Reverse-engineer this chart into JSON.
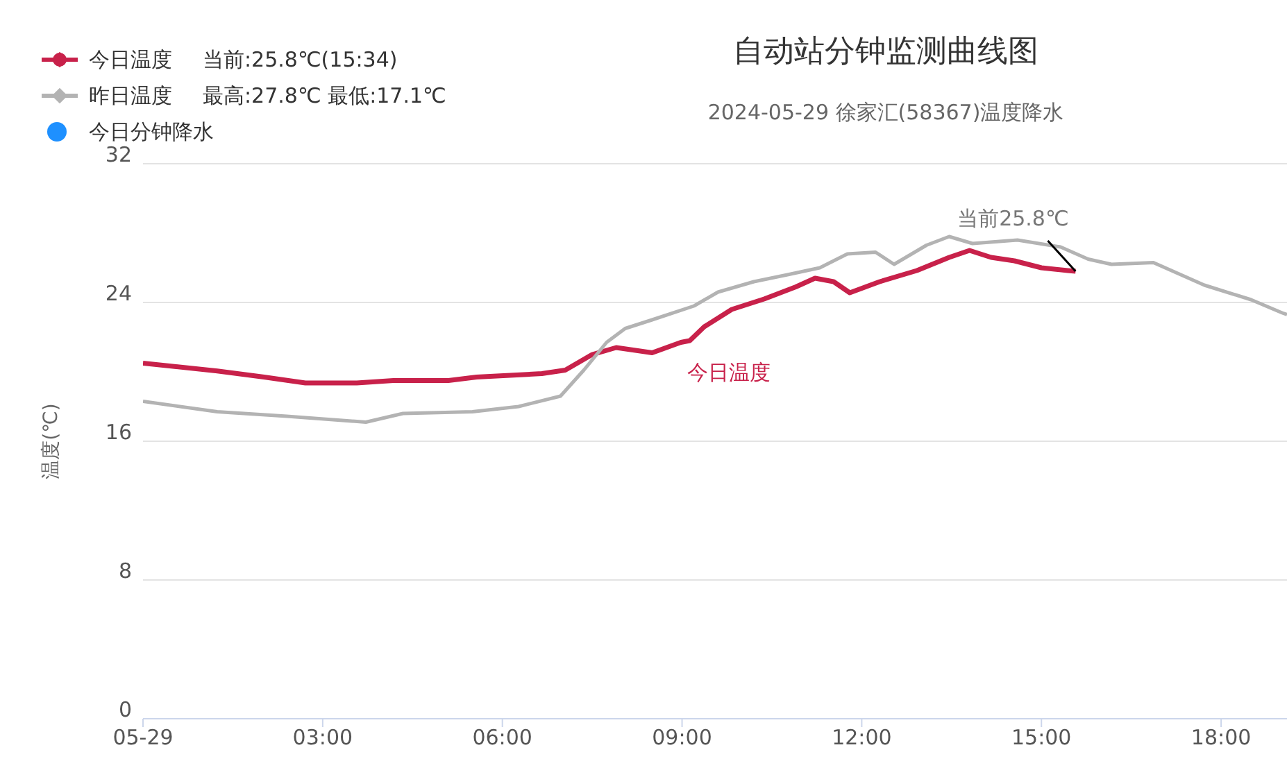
{
  "chart_data": {
    "type": "line",
    "title": "自动站分钟监测曲线图",
    "subtitle": "2024-05-29 徐家汇(58367)温度降水",
    "ylabel": "温度(℃)",
    "xlim": [
      0,
      19.1
    ],
    "xticks": [
      {
        "value": 0,
        "label": "05-29"
      },
      {
        "value": 3,
        "label": "03:00"
      },
      {
        "value": 6,
        "label": "06:00"
      },
      {
        "value": 9,
        "label": "09:00"
      },
      {
        "value": 12,
        "label": "12:00"
      },
      {
        "value": 15,
        "label": "15:00"
      },
      {
        "value": 18,
        "label": "18:00"
      }
    ],
    "ylim": [
      0,
      32
    ],
    "yticks": [
      0,
      8,
      16,
      24,
      32
    ],
    "grid": "y",
    "legend": "top left",
    "marker": "none",
    "line_style": "solid",
    "annotations": [
      "当前:25.8℃(15:34)",
      "最高:27.8℃ 最低:17.1℃",
      {
        "text": "当前25.8℃",
        "x": 15.57,
        "y": 25.8
      }
    ],
    "series": [
      {
        "name": "今日温度",
        "color": "#c8214a",
        "x": [
          0,
          1.24,
          2.02,
          2.71,
          3.57,
          4.18,
          5.1,
          5.57,
          6.66,
          7.05,
          7.5,
          7.9,
          8.5,
          8.98,
          9.13,
          9.37,
          9.83,
          10.37,
          10.9,
          11.22,
          11.53,
          11.8,
          12.3,
          12.92,
          13.46,
          13.8,
          14.16,
          14.55,
          15.0,
          15.44,
          15.57
        ],
        "values": [
          20.5,
          20.05,
          19.7,
          19.36,
          19.36,
          19.5,
          19.5,
          19.7,
          19.9,
          20.1,
          21.0,
          21.4,
          21.1,
          21.7,
          21.8,
          22.6,
          23.6,
          24.2,
          24.9,
          25.4,
          25.2,
          24.56,
          25.2,
          25.84,
          26.6,
          27.0,
          26.6,
          26.4,
          26.0,
          25.84,
          25.8
        ]
      },
      {
        "name": "昨日温度",
        "color": "#b3b3b3",
        "x": [
          0,
          1.24,
          2.4,
          3.72,
          4.34,
          5.5,
          6.27,
          6.97,
          7.36,
          7.74,
          8.05,
          8.5,
          9.2,
          9.6,
          10.2,
          10.76,
          11.3,
          11.76,
          12.23,
          12.54,
          13.08,
          13.46,
          13.85,
          14.6,
          15.32,
          15.78,
          16.17,
          16.87,
          17.72,
          18.5,
          19.02,
          19.1
        ],
        "values": [
          18.3,
          17.7,
          17.44,
          17.1,
          17.6,
          17.7,
          18.0,
          18.6,
          20.1,
          21.7,
          22.5,
          23.0,
          23.8,
          24.6,
          25.2,
          25.6,
          26.0,
          26.8,
          26.9,
          26.2,
          27.3,
          27.8,
          27.4,
          27.6,
          27.2,
          26.5,
          26.2,
          26.3,
          25.0,
          24.16,
          23.4,
          23.3
        ]
      },
      {
        "name": "今日分钟降水",
        "color": "#1e90ff",
        "type": "scatter"
      }
    ]
  }
}
